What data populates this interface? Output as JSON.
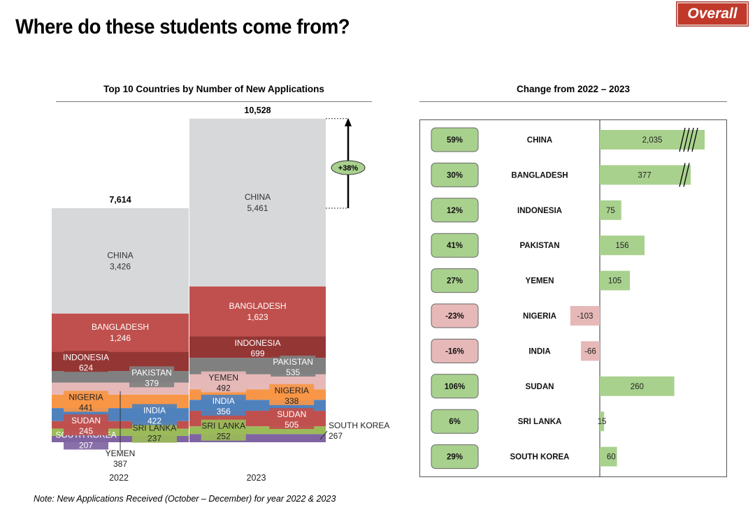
{
  "header": {
    "title": "Where do these students come from?",
    "badge": "Overall"
  },
  "footer": {
    "note": "Note: New Applications Received (October – December) for year 2022 & 2023"
  },
  "chart_data": [
    {
      "type": "bar",
      "stacked": true,
      "title": "Top 10 Countries by Number of New Applications",
      "categories": [
        "2022",
        "2023"
      ],
      "totals": [
        "7,614",
        "10,528"
      ],
      "growth_label": "+38%",
      "series": [
        {
          "name": "CHINA",
          "color": "#d6d8da",
          "text_color": "#333333",
          "values": [
            3426,
            5461
          ],
          "labels": [
            "3,426",
            "5,461"
          ]
        },
        {
          "name": "BANGLADESH",
          "color": "#c0504d",
          "text_color": "#ffffff",
          "values": [
            1246,
            1623
          ],
          "labels": [
            "1,246",
            "1,623"
          ]
        },
        {
          "name": "INDONESIA",
          "color": "#943634",
          "text_color": "#ffffff",
          "values": [
            624,
            699
          ],
          "labels": [
            "624",
            "699"
          ]
        },
        {
          "name": "PAKISTAN",
          "color": "#808080",
          "text_color": "#ffffff",
          "values": [
            379,
            535
          ],
          "labels": [
            "379",
            "535"
          ]
        },
        {
          "name": "YEMEN",
          "color": "#e6b9b8",
          "text_color": "#222222",
          "values": [
            387,
            492
          ],
          "labels": [
            "387",
            "492"
          ]
        },
        {
          "name": "NIGERIA",
          "color": "#f79646",
          "text_color": "#222222",
          "values": [
            441,
            338
          ],
          "labels": [
            "441",
            "338"
          ]
        },
        {
          "name": "INDIA",
          "color": "#4f81bd",
          "text_color": "#ffffff",
          "values": [
            422,
            356
          ],
          "labels": [
            "422",
            "356"
          ]
        },
        {
          "name": "SUDAN",
          "color": "#c0504d",
          "text_color": "#ffffff",
          "values": [
            245,
            505
          ],
          "labels": [
            "245",
            "505"
          ]
        },
        {
          "name": "SRI LANKA",
          "color": "#9bbb59",
          "text_color": "#222222",
          "values": [
            237,
            252
          ],
          "labels": [
            "237",
            "252"
          ]
        },
        {
          "name": "SOUTH KOREA",
          "color": "#8064a2",
          "text_color": "#ffffff",
          "values": [
            207,
            267
          ],
          "labels": [
            "207",
            "267"
          ]
        }
      ]
    },
    {
      "type": "bar",
      "orientation": "horizontal",
      "title": "Change from 2022 – 2023",
      "categories": [
        "CHINA",
        "BANGLADESH",
        "INDONESIA",
        "PAKISTAN",
        "YEMEN",
        "NIGERIA",
        "INDIA",
        "SUDAN",
        "SRI LANKA",
        "SOUTH KOREA"
      ],
      "values": [
        2035,
        377,
        75,
        156,
        105,
        -103,
        -66,
        260,
        15,
        60
      ],
      "value_labels": [
        "2,035",
        "377",
        "75",
        "156",
        "105",
        "-103",
        "-66",
        "260",
        "15",
        "60"
      ],
      "percent_labels": [
        "59%",
        "30%",
        "12%",
        "41%",
        "27%",
        "-23%",
        "-16%",
        "106%",
        "6%",
        "29%"
      ],
      "axis_break": [
        "CHINA",
        "BANGLADESH"
      ],
      "colors": {
        "positive": "#a9d18e",
        "negative": "#e6b9b8"
      }
    }
  ]
}
